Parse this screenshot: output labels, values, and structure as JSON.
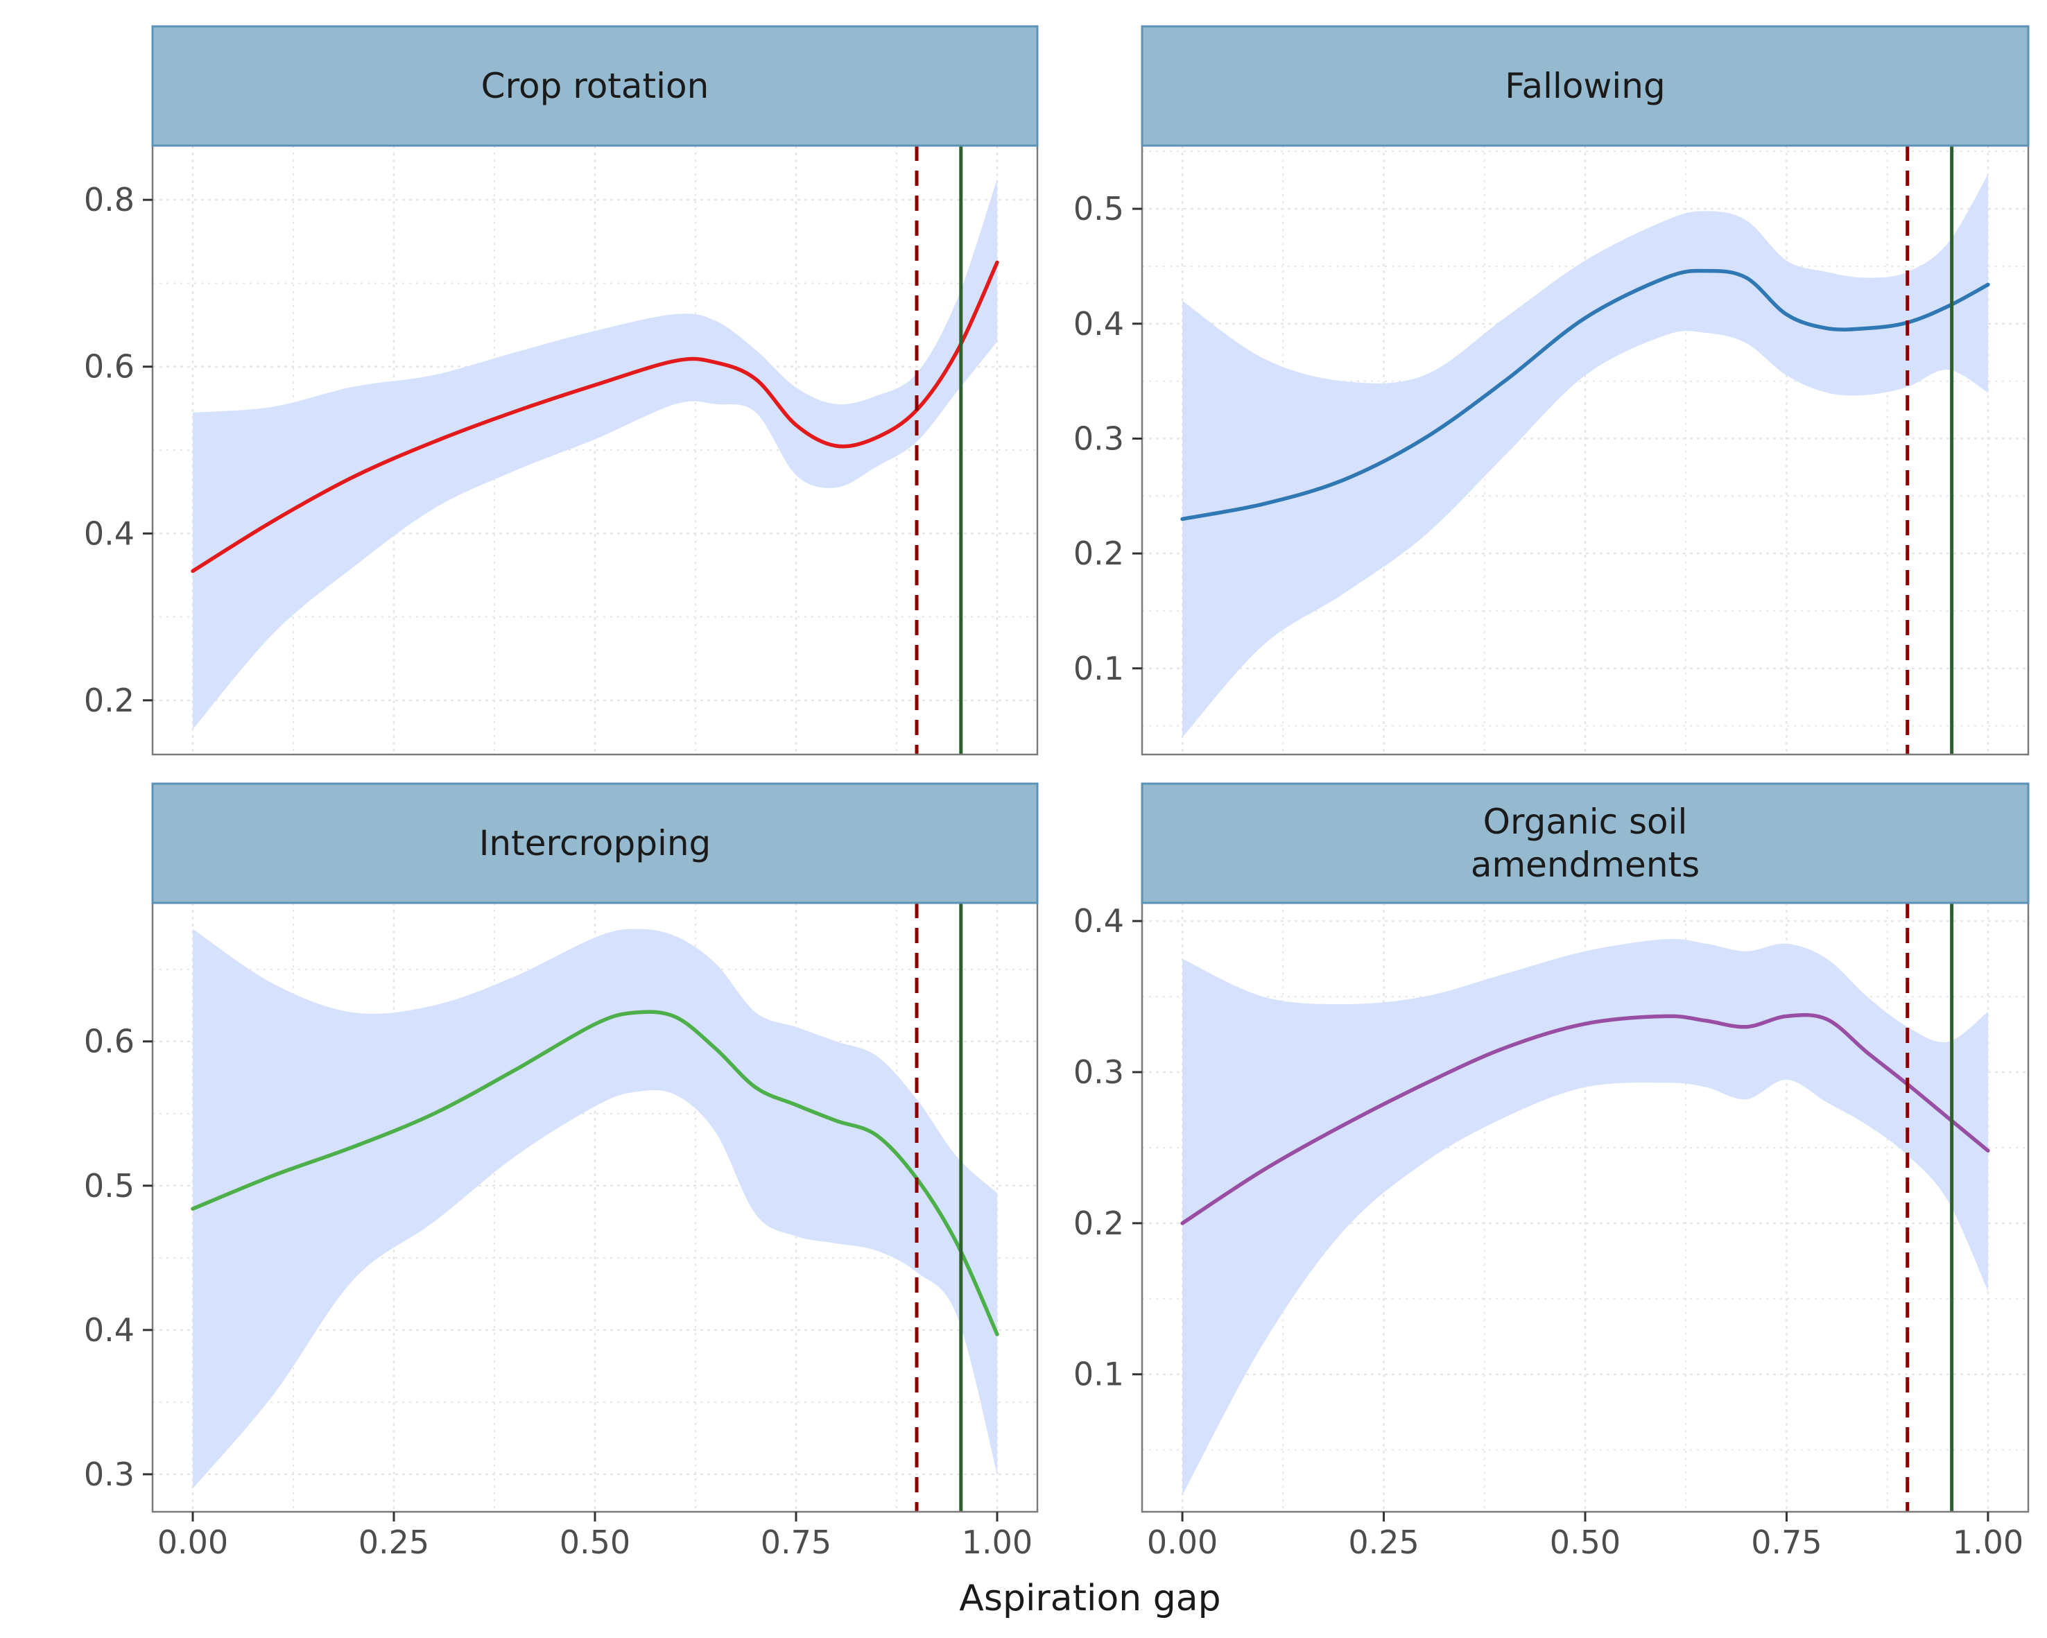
{
  "chart_data": {
    "type": "line",
    "layout": "facet-grid-2x2",
    "xlabel": "Aspiration gap",
    "ylabel": "",
    "xlim": [
      -0.05,
      1.05
    ],
    "xticks": [
      0,
      0.25,
      0.5,
      0.75,
      1
    ],
    "xtick_labels": [
      "0.00",
      "0.25",
      "0.50",
      "0.75",
      "1.00"
    ],
    "grid": true,
    "colors": {
      "strip_fill": "#95b9cf",
      "strip_border": "#5b93b7",
      "ribbon": "#d6e2fd",
      "dashed_line": "#8b0000",
      "solid_line": "#2f5f2f",
      "gridline": "#e6e6e6",
      "panel_border": "#7a7a7a"
    },
    "reference_lines": [
      {
        "x": 0.9,
        "style": "dashed",
        "color": "#8b0000"
      },
      {
        "x": 0.955,
        "style": "solid",
        "color": "#2f5f2f"
      }
    ],
    "panels": [
      {
        "title": "Crop rotation",
        "color": "#e31a1c",
        "ylim": [
          0.135,
          0.865
        ],
        "yticks": [
          0.2,
          0.4,
          0.6,
          0.8
        ],
        "ytick_labels": [
          "0.2",
          "0.4",
          "0.6",
          "0.8"
        ],
        "x": [
          0,
          0.1,
          0.2,
          0.3,
          0.4,
          0.5,
          0.6,
          0.65,
          0.7,
          0.75,
          0.8,
          0.85,
          0.9,
          0.95,
          1.0
        ],
        "y": [
          0.355,
          0.415,
          0.468,
          0.51,
          0.546,
          0.578,
          0.607,
          0.605,
          0.585,
          0.53,
          0.505,
          0.515,
          0.548,
          0.618,
          0.725
        ],
        "lower": [
          0.165,
          0.28,
          0.36,
          0.43,
          0.475,
          0.513,
          0.555,
          0.555,
          0.545,
          0.47,
          0.455,
          0.48,
          0.51,
          0.57,
          0.63
        ],
        "upper": [
          0.545,
          0.552,
          0.576,
          0.59,
          0.617,
          0.643,
          0.663,
          0.655,
          0.62,
          0.575,
          0.555,
          0.565,
          0.592,
          0.68,
          0.825
        ]
      },
      {
        "title": "Fallowing",
        "color": "#2f78b4",
        "ylim": [
          0.025,
          0.555
        ],
        "yticks": [
          0.1,
          0.2,
          0.3,
          0.4,
          0.5
        ],
        "ytick_labels": [
          "0.1",
          "0.2",
          "0.3",
          "0.4",
          "0.5"
        ],
        "x": [
          0,
          0.1,
          0.2,
          0.3,
          0.4,
          0.5,
          0.6,
          0.65,
          0.7,
          0.75,
          0.8,
          0.85,
          0.9,
          0.95,
          1.0
        ],
        "y": [
          0.23,
          0.243,
          0.264,
          0.3,
          0.35,
          0.405,
          0.44,
          0.446,
          0.44,
          0.408,
          0.396,
          0.396,
          0.401,
          0.415,
          0.434
        ],
        "lower": [
          0.04,
          0.12,
          0.165,
          0.215,
          0.285,
          0.355,
          0.39,
          0.392,
          0.383,
          0.355,
          0.34,
          0.338,
          0.345,
          0.36,
          0.34
        ],
        "upper": [
          0.42,
          0.37,
          0.35,
          0.355,
          0.405,
          0.455,
          0.49,
          0.498,
          0.49,
          0.455,
          0.445,
          0.44,
          0.445,
          0.47,
          0.53
        ]
      },
      {
        "title": "Intercropping",
        "color": "#4daf4a",
        "ylim": [
          0.274,
          0.696
        ],
        "yticks": [
          0.3,
          0.4,
          0.5,
          0.6
        ],
        "ytick_labels": [
          "0.3",
          "0.4",
          "0.5",
          "0.6"
        ],
        "x": [
          0,
          0.1,
          0.2,
          0.3,
          0.4,
          0.5,
          0.55,
          0.6,
          0.65,
          0.7,
          0.75,
          0.8,
          0.85,
          0.9,
          0.95,
          1.0
        ],
        "y": [
          0.484,
          0.507,
          0.527,
          0.55,
          0.58,
          0.612,
          0.62,
          0.617,
          0.595,
          0.568,
          0.556,
          0.545,
          0.535,
          0.505,
          0.46,
          0.397
        ],
        "lower": [
          0.29,
          0.355,
          0.435,
          0.475,
          0.52,
          0.555,
          0.565,
          0.563,
          0.537,
          0.48,
          0.465,
          0.46,
          0.455,
          0.44,
          0.41,
          0.3
        ],
        "upper": [
          0.678,
          0.64,
          0.62,
          0.625,
          0.645,
          0.672,
          0.678,
          0.673,
          0.654,
          0.62,
          0.61,
          0.6,
          0.59,
          0.56,
          0.52,
          0.495
        ]
      },
      {
        "title": "Organic soil\namendments",
        "color": "#984ea3",
        "ylim": [
          0.009,
          0.412
        ],
        "yticks": [
          0.1,
          0.2,
          0.3,
          0.4
        ],
        "ytick_labels": [
          "0.1",
          "0.2",
          "0.3",
          "0.4"
        ],
        "x": [
          0,
          0.1,
          0.2,
          0.3,
          0.4,
          0.5,
          0.6,
          0.65,
          0.7,
          0.75,
          0.8,
          0.85,
          0.9,
          0.95,
          1.0
        ],
        "y": [
          0.2,
          0.235,
          0.265,
          0.292,
          0.316,
          0.332,
          0.337,
          0.334,
          0.33,
          0.337,
          0.335,
          0.313,
          0.292,
          0.27,
          0.248
        ],
        "lower": [
          0.02,
          0.12,
          0.195,
          0.24,
          0.27,
          0.29,
          0.293,
          0.29,
          0.282,
          0.295,
          0.28,
          0.265,
          0.245,
          0.215,
          0.155
        ],
        "upper": [
          0.375,
          0.35,
          0.345,
          0.35,
          0.365,
          0.38,
          0.388,
          0.385,
          0.38,
          0.385,
          0.375,
          0.35,
          0.33,
          0.32,
          0.34
        ]
      }
    ]
  }
}
